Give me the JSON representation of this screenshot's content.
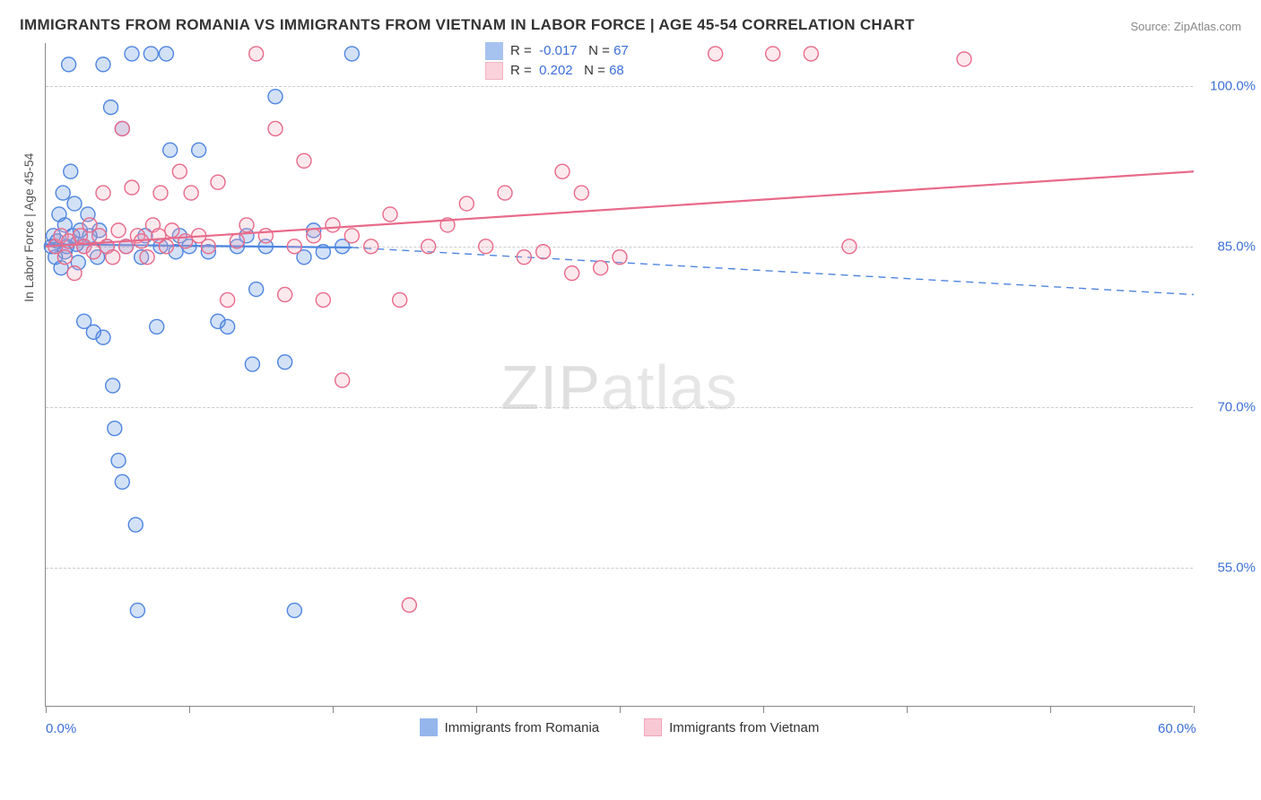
{
  "title": "IMMIGRANTS FROM ROMANIA VS IMMIGRANTS FROM VIETNAM IN LABOR FORCE | AGE 45-54 CORRELATION CHART",
  "source": "Source: ZipAtlas.com",
  "y_axis_title": "In Labor Force | Age 45-54",
  "watermark_left": "ZIP",
  "watermark_right": "atlas",
  "chart": {
    "type": "scatter",
    "xlim": [
      0,
      60
    ],
    "ylim": [
      42,
      104
    ],
    "x_ticks": [
      0,
      7.5,
      15,
      22.5,
      30,
      37.5,
      45,
      52.5,
      60
    ],
    "x_tick_labels_shown": {
      "0": "0.0%",
      "60": "60.0%"
    },
    "y_ticks": [
      55,
      70,
      85,
      100
    ],
    "y_tick_labels": {
      "55": "55.0%",
      "70": "70.0%",
      "85": "85.0%",
      "100": "100.0%"
    },
    "grid_color": "#cccccc",
    "background_color": "#ffffff",
    "marker_radius": 8,
    "marker_fill_opacity": 0.25,
    "marker_stroke_width": 1.4,
    "line_width": 2.2,
    "series": [
      {
        "name": "Immigrants from Romania",
        "color": "#4f86e0",
        "fill": "#4f86e0",
        "R": "-0.017",
        "N": "67",
        "trend": {
          "x1": 0,
          "y1": 85.2,
          "x2_solid": 16,
          "y2_solid": 84.9,
          "x2": 60,
          "y2": 80.5,
          "dashed_after_solid": true
        },
        "points": [
          [
            0.3,
            85
          ],
          [
            0.4,
            86
          ],
          [
            0.5,
            84
          ],
          [
            0.6,
            85.5
          ],
          [
            0.7,
            88
          ],
          [
            0.8,
            83
          ],
          [
            0.9,
            90
          ],
          [
            1.0,
            87
          ],
          [
            1.0,
            84.5
          ],
          [
            1.1,
            85
          ],
          [
            1.2,
            102
          ],
          [
            1.3,
            92
          ],
          [
            1.4,
            86
          ],
          [
            1.5,
            89
          ],
          [
            1.6,
            85.2
          ],
          [
            1.7,
            83.5
          ],
          [
            1.8,
            86.5
          ],
          [
            2.0,
            78
          ],
          [
            2.0,
            85
          ],
          [
            2.2,
            88
          ],
          [
            2.3,
            86
          ],
          [
            2.5,
            77
          ],
          [
            2.7,
            84
          ],
          [
            2.8,
            86.5
          ],
          [
            3.0,
            76.5
          ],
          [
            3.0,
            102
          ],
          [
            3.2,
            85
          ],
          [
            3.4,
            98
          ],
          [
            3.5,
            72
          ],
          [
            3.6,
            68
          ],
          [
            3.8,
            65
          ],
          [
            4.0,
            96
          ],
          [
            4.0,
            63
          ],
          [
            4.2,
            85
          ],
          [
            4.5,
            103
          ],
          [
            4.7,
            59
          ],
          [
            4.8,
            51
          ],
          [
            5.0,
            84
          ],
          [
            5.2,
            86
          ],
          [
            5.5,
            103
          ],
          [
            5.8,
            77.5
          ],
          [
            6.0,
            85
          ],
          [
            6.3,
            103
          ],
          [
            6.5,
            94
          ],
          [
            6.8,
            84.5
          ],
          [
            7.0,
            86
          ],
          [
            7.5,
            85
          ],
          [
            8.0,
            94
          ],
          [
            8.5,
            84.5
          ],
          [
            9.0,
            78
          ],
          [
            9.5,
            77.5
          ],
          [
            10.0,
            85
          ],
          [
            10.5,
            86
          ],
          [
            10.8,
            74
          ],
          [
            11.5,
            85
          ],
          [
            12.0,
            99
          ],
          [
            12.5,
            74.2
          ],
          [
            13.0,
            51
          ],
          [
            13.5,
            84
          ],
          [
            14.0,
            86.5
          ],
          [
            14.5,
            84.5
          ],
          [
            15.5,
            85
          ],
          [
            16.0,
            103
          ],
          [
            11.0,
            81
          ]
        ]
      },
      {
        "name": "Immigrants from Vietnam",
        "color": "#e86a8a",
        "fill": "#f4a6b8",
        "R": "0.202",
        "N": "68",
        "trend": {
          "x1": 0,
          "y1": 85.0,
          "x2_solid": 60,
          "y2_solid": 92.0,
          "x2": 60,
          "y2": 92.0,
          "dashed_after_solid": false
        },
        "points": [
          [
            0.5,
            85
          ],
          [
            0.8,
            86
          ],
          [
            1.0,
            84
          ],
          [
            1.2,
            85.5
          ],
          [
            1.5,
            82.5
          ],
          [
            1.8,
            86
          ],
          [
            2.0,
            85
          ],
          [
            2.3,
            87
          ],
          [
            2.5,
            84.5
          ],
          [
            2.8,
            86
          ],
          [
            3.0,
            90
          ],
          [
            3.2,
            85
          ],
          [
            3.5,
            84
          ],
          [
            3.8,
            86.5
          ],
          [
            4.0,
            96
          ],
          [
            4.2,
            85
          ],
          [
            4.5,
            90.5
          ],
          [
            4.8,
            86
          ],
          [
            5.0,
            85.5
          ],
          [
            5.3,
            84
          ],
          [
            5.6,
            87
          ],
          [
            5.9,
            86
          ],
          [
            6.0,
            90
          ],
          [
            6.3,
            85
          ],
          [
            6.6,
            86.5
          ],
          [
            7.0,
            92
          ],
          [
            7.3,
            85.5
          ],
          [
            7.6,
            90
          ],
          [
            8.0,
            86
          ],
          [
            8.5,
            85
          ],
          [
            9.0,
            91
          ],
          [
            9.5,
            80
          ],
          [
            10.0,
            85.5
          ],
          [
            10.5,
            87
          ],
          [
            11.0,
            103
          ],
          [
            11.5,
            86
          ],
          [
            12.0,
            96
          ],
          [
            12.5,
            80.5
          ],
          [
            13.0,
            85
          ],
          [
            13.5,
            93
          ],
          [
            14.0,
            86
          ],
          [
            14.5,
            80
          ],
          [
            15.0,
            87
          ],
          [
            15.5,
            72.5
          ],
          [
            16.0,
            86
          ],
          [
            17.0,
            85
          ],
          [
            18.0,
            88
          ],
          [
            18.5,
            80
          ],
          [
            19.0,
            51.5
          ],
          [
            20.0,
            85
          ],
          [
            21.0,
            87
          ],
          [
            22.0,
            89
          ],
          [
            23.0,
            85
          ],
          [
            24.0,
            90
          ],
          [
            25.0,
            84
          ],
          [
            26.0,
            84.5
          ],
          [
            27.0,
            92
          ],
          [
            27.5,
            82.5
          ],
          [
            28.0,
            90
          ],
          [
            29.0,
            83
          ],
          [
            30.0,
            84
          ],
          [
            35.0,
            103
          ],
          [
            38.0,
            103
          ],
          [
            40.0,
            103
          ],
          [
            42.0,
            85
          ],
          [
            48.0,
            102.5
          ]
        ]
      }
    ]
  },
  "bottom_legend": [
    {
      "label": "Immigrants from Romania",
      "color": "#4f86e0"
    },
    {
      "label": "Immigrants from Vietnam",
      "color": "#f4a6b8"
    }
  ]
}
